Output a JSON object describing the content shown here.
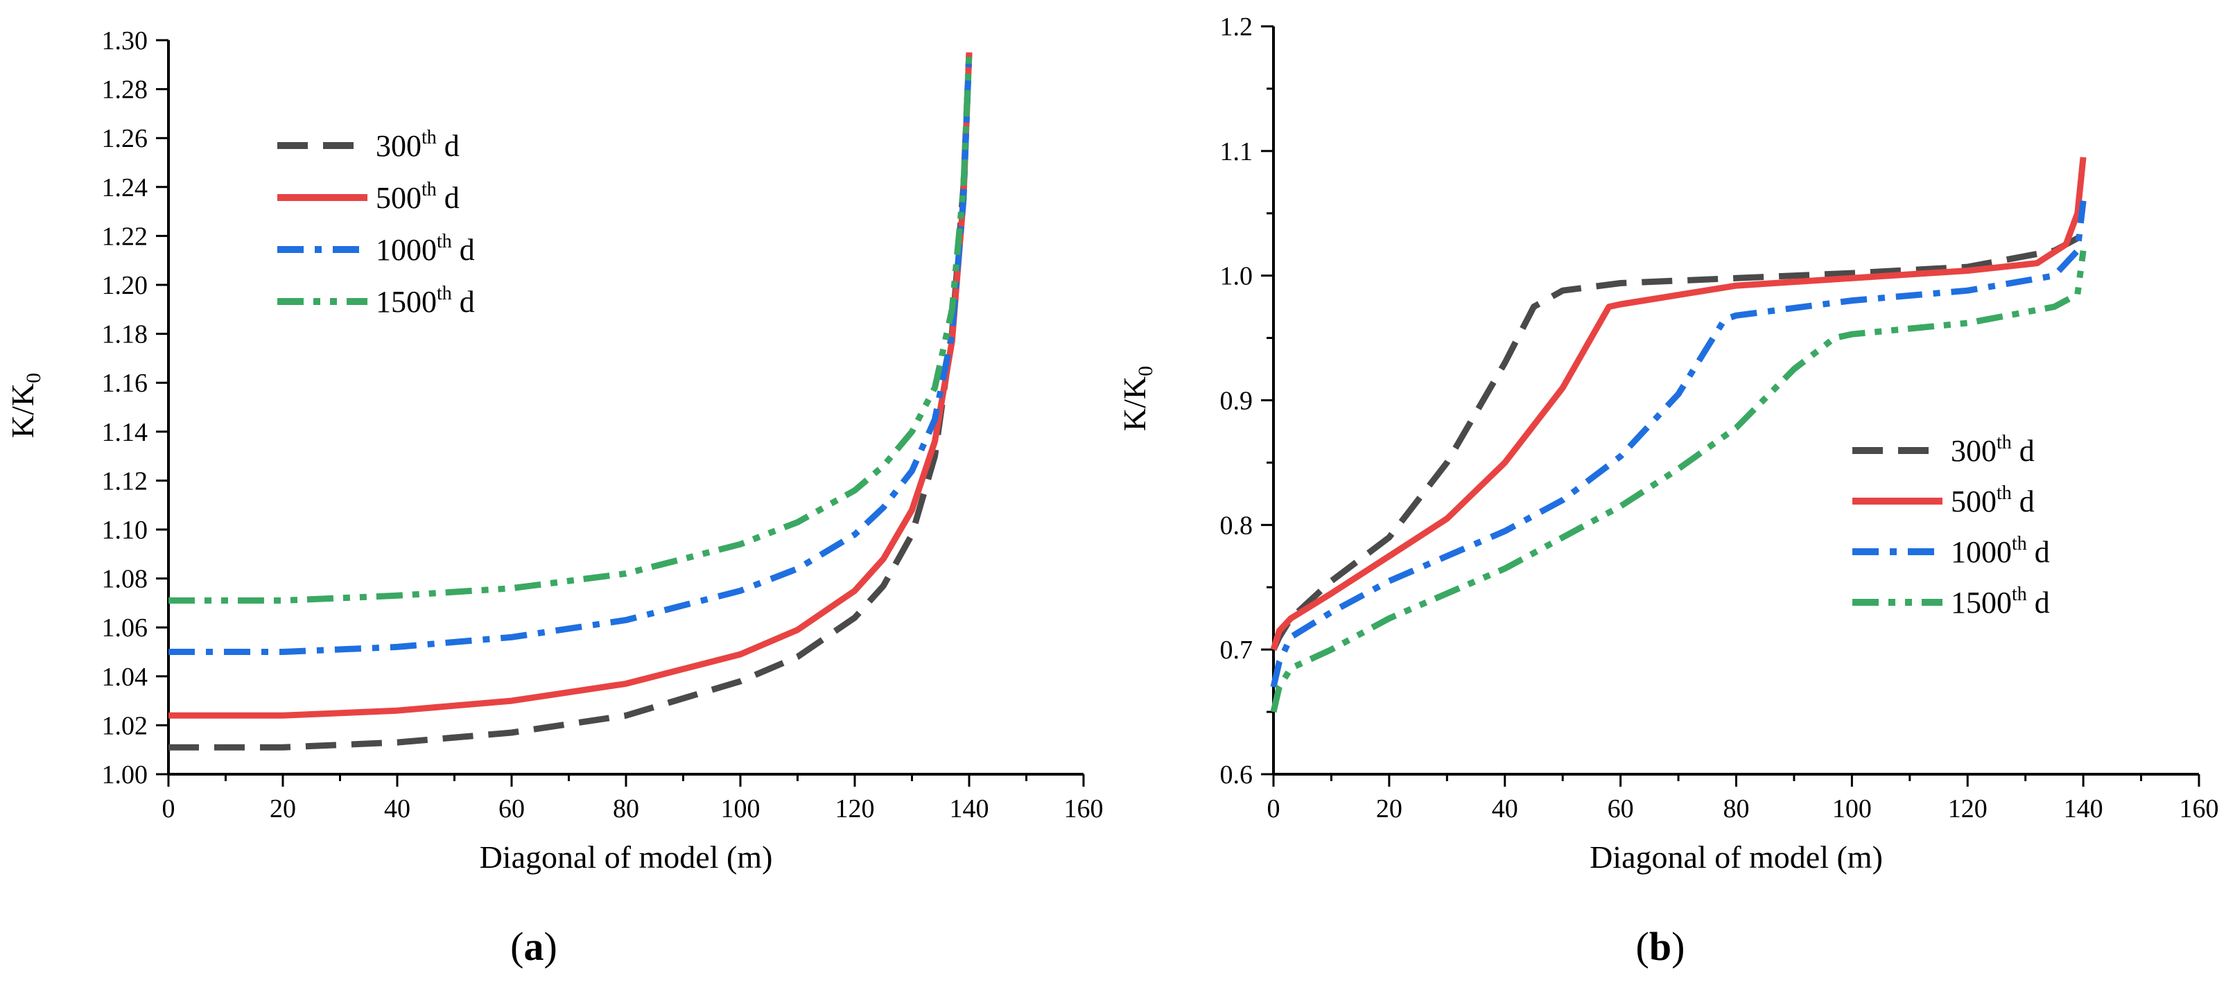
{
  "colors": {
    "s300": "#4a4a4a",
    "s500": "#e84343",
    "s1000": "#1f6fe0",
    "s1500": "#3aa862"
  },
  "chart_data": [
    {
      "type": "line",
      "panel_label": "(a)",
      "panel_letter": "a",
      "xlabel": "Diagonal of model (m)",
      "ylabel": "K/K",
      "ylabel_sub": "0",
      "xlim": [
        0,
        160
      ],
      "ylim": [
        1.0,
        1.3
      ],
      "x_ticks": [
        0,
        20,
        40,
        60,
        80,
        100,
        120,
        140,
        160
      ],
      "y_ticks": [
        1.0,
        1.02,
        1.04,
        1.06,
        1.08,
        1.1,
        1.12,
        1.14,
        1.16,
        1.18,
        1.2,
        1.22,
        1.24,
        1.26,
        1.28,
        1.3
      ],
      "y_tick_labels": [
        "1.00",
        "1.02",
        "1.04",
        "1.06",
        "1.08",
        "1.10",
        "1.12",
        "1.14",
        "1.16",
        "1.18",
        "1.20",
        "1.22",
        "1.24",
        "1.26",
        "1.28",
        "1.30"
      ],
      "legend_position": "top-left",
      "series": [
        {
          "name": "300th d",
          "label_num": "300",
          "label_sup": "th",
          "label_unit": "d",
          "color_key": "s300",
          "dash": "long-dash",
          "x": [
            0,
            20,
            40,
            60,
            80,
            100,
            110,
            120,
            125,
            130,
            134,
            137,
            139,
            140
          ],
          "y": [
            1.011,
            1.011,
            1.013,
            1.017,
            1.024,
            1.038,
            1.048,
            1.064,
            1.077,
            1.098,
            1.13,
            1.18,
            1.24,
            1.295
          ]
        },
        {
          "name": "500th d",
          "label_num": "500",
          "label_sup": "th",
          "label_unit": "d",
          "color_key": "s500",
          "dash": "solid",
          "x": [
            0,
            20,
            40,
            60,
            80,
            100,
            110,
            120,
            125,
            130,
            134,
            137,
            139,
            140
          ],
          "y": [
            1.024,
            1.024,
            1.026,
            1.03,
            1.037,
            1.049,
            1.059,
            1.075,
            1.088,
            1.108,
            1.136,
            1.177,
            1.235,
            1.295
          ]
        },
        {
          "name": "1000th d",
          "label_num": "1000",
          "label_sup": "th",
          "label_unit": "d",
          "color_key": "s1000",
          "dash": "dash-dot",
          "x": [
            0,
            20,
            40,
            60,
            80,
            100,
            110,
            120,
            125,
            130,
            134,
            137,
            139,
            140
          ],
          "y": [
            1.05,
            1.05,
            1.052,
            1.056,
            1.063,
            1.075,
            1.084,
            1.098,
            1.109,
            1.124,
            1.145,
            1.18,
            1.235,
            1.295
          ]
        },
        {
          "name": "1500th d",
          "label_num": "1500",
          "label_sup": "th",
          "label_unit": "d",
          "color_key": "s1500",
          "dash": "dash-dot-dot",
          "x": [
            0,
            20,
            40,
            60,
            80,
            100,
            110,
            120,
            125,
            130,
            134,
            137,
            139,
            140
          ],
          "y": [
            1.071,
            1.071,
            1.073,
            1.076,
            1.082,
            1.094,
            1.103,
            1.116,
            1.126,
            1.14,
            1.158,
            1.19,
            1.24,
            1.295
          ]
        }
      ]
    },
    {
      "type": "line",
      "panel_label": "(b)",
      "panel_letter": "b",
      "xlabel": "Diagonal of model (m)",
      "ylabel": "K/K",
      "ylabel_sub": "0",
      "xlim": [
        0,
        160
      ],
      "ylim": [
        0.6,
        1.2
      ],
      "x_ticks": [
        0,
        20,
        40,
        60,
        80,
        100,
        120,
        140,
        160
      ],
      "y_ticks": [
        0.6,
        0.7,
        0.8,
        0.9,
        1.0,
        1.1,
        1.2
      ],
      "y_tick_labels": [
        "0.6",
        "0.7",
        "0.8",
        "0.9",
        "1.0",
        "1.1",
        "1.2"
      ],
      "legend_position": "center-right",
      "series": [
        {
          "name": "300th d",
          "label_num": "300",
          "label_sup": "th",
          "label_unit": "d",
          "color_key": "s300",
          "dash": "long-dash",
          "x": [
            0,
            1,
            3,
            10,
            20,
            30,
            40,
            45,
            50,
            60,
            80,
            100,
            120,
            135,
            139,
            140
          ],
          "y": [
            0.7,
            0.71,
            0.725,
            0.755,
            0.79,
            0.85,
            0.93,
            0.975,
            0.988,
            0.994,
            0.998,
            1.002,
            1.007,
            1.02,
            1.03,
            1.06
          ]
        },
        {
          "name": "500th d",
          "label_num": "500",
          "label_sup": "th",
          "label_unit": "d",
          "color_key": "s500",
          "dash": "solid",
          "x": [
            0,
            1,
            3,
            10,
            20,
            30,
            40,
            50,
            58,
            60,
            80,
            100,
            120,
            132,
            137,
            139,
            140
          ],
          "y": [
            0.7,
            0.715,
            0.725,
            0.745,
            0.775,
            0.805,
            0.85,
            0.91,
            0.975,
            0.977,
            0.992,
            0.998,
            1.004,
            1.01,
            1.025,
            1.05,
            1.095
          ]
        },
        {
          "name": "1000th d",
          "label_num": "1000",
          "label_sup": "th",
          "label_unit": "d",
          "color_key": "s1000",
          "dash": "dash-dot",
          "x": [
            0,
            1,
            3,
            10,
            20,
            30,
            40,
            50,
            60,
            70,
            78,
            80,
            100,
            120,
            135,
            139,
            140
          ],
          "y": [
            0.67,
            0.69,
            0.71,
            0.73,
            0.755,
            0.775,
            0.795,
            0.82,
            0.855,
            0.905,
            0.965,
            0.968,
            0.98,
            0.988,
            1.0,
            1.02,
            1.06
          ]
        },
        {
          "name": "1500th d",
          "label_num": "1500",
          "label_sup": "th",
          "label_unit": "d",
          "color_key": "s1500",
          "dash": "dash-dot-dot",
          "x": [
            0,
            1,
            3,
            10,
            20,
            30,
            40,
            50,
            60,
            70,
            80,
            90,
            97,
            100,
            120,
            135,
            139,
            140
          ],
          "y": [
            0.65,
            0.67,
            0.685,
            0.7,
            0.725,
            0.745,
            0.765,
            0.79,
            0.815,
            0.845,
            0.878,
            0.925,
            0.95,
            0.953,
            0.962,
            0.975,
            0.985,
            1.02
          ]
        }
      ]
    }
  ]
}
